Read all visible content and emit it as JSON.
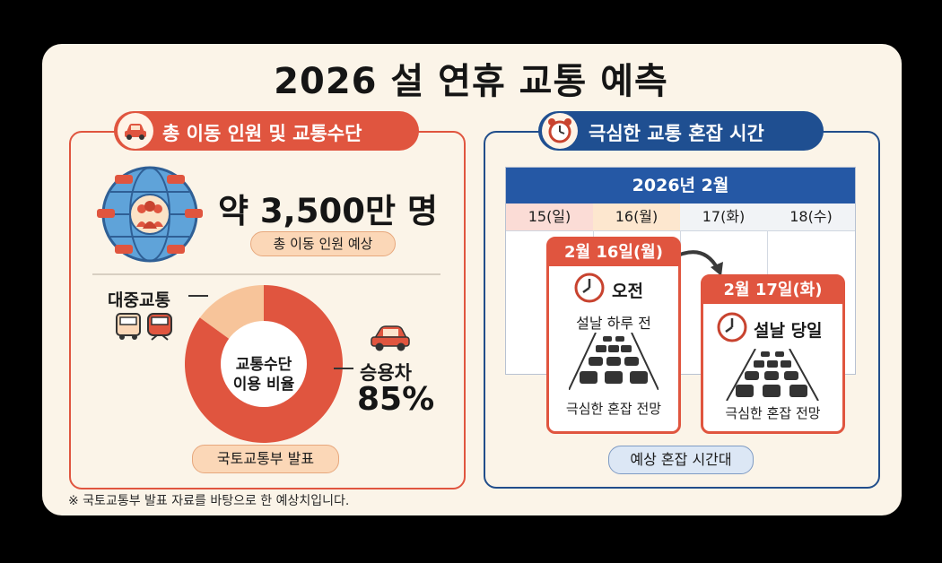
{
  "title": "2026 설 연휴 교통 예측",
  "left_panel": {
    "header": "총 이동 인원 및 교통수단",
    "total_value": "약 3,500만 명",
    "total_caption": "총 이동 인원 예상",
    "donut": {
      "center_line1": "교통수단",
      "center_line2": "이용 비율",
      "public_label": "대중교통",
      "car_label": "승용차",
      "car_percent": "85%",
      "car_share": 0.85,
      "colors": {
        "car": "#e0553f",
        "public": "#f7c49a"
      }
    },
    "source_tag": "국토교통부 발표"
  },
  "right_panel": {
    "header": "극심한 교통 혼잡 시간",
    "calendar": {
      "month": "2026년 2월",
      "days": [
        "15(일)",
        "16(월)",
        "17(화)",
        "18(수)"
      ]
    },
    "peak1": {
      "date": "2월 16일(월)",
      "time": "오전",
      "desc": "설날 하루 전",
      "forecast": "극심한 혼잡 전망"
    },
    "peak2": {
      "date": "2월 17일(화)",
      "time": "설날 당일",
      "forecast": "극심한 혼잡 전망"
    },
    "bottom_tag": "예상 혼잡 시간대"
  },
  "footnote": "※ 국토교통부 발표 자료를 바탕으로 한 예상치입니다."
}
